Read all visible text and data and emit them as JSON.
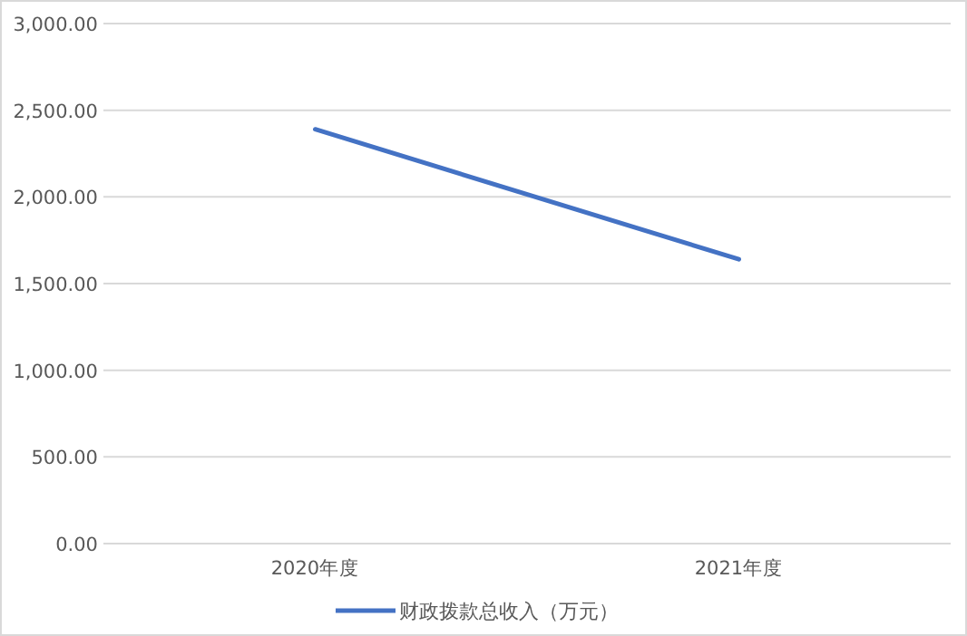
{
  "chart_data": {
    "type": "line",
    "categories": [
      "2020年度",
      "2021年度"
    ],
    "series": [
      {
        "name": "财政拨款总收入（万元）",
        "color": "#4472c4",
        "values": [
          2390,
          1640
        ]
      }
    ],
    "ylim": [
      0,
      3000
    ],
    "yticks": [
      {
        "value": 0,
        "label": "0.00"
      },
      {
        "value": 500,
        "label": "500.00"
      },
      {
        "value": 1000,
        "label": "1,000.00"
      },
      {
        "value": 1500,
        "label": "1,500.00"
      },
      {
        "value": 2000,
        "label": "2,000.00"
      },
      {
        "value": 2500,
        "label": "2,500.00"
      },
      {
        "value": 3000,
        "label": "3,000.00"
      }
    ],
    "grid": "y",
    "legend": "bottom",
    "marker": "none",
    "line_style": "solid"
  }
}
